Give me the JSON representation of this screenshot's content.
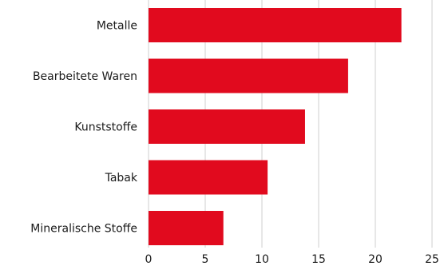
{
  "chart_data": {
    "type": "bar",
    "orientation": "horizontal",
    "categories": [
      "Metalle",
      "Bearbeitete Waren",
      "Kunststoffe",
      "Tabak",
      "Mineralische Stoffe"
    ],
    "values": [
      22.3,
      17.6,
      13.8,
      10.5,
      6.6
    ],
    "xlim": [
      0,
      25
    ],
    "x_ticks": [
      "0",
      "5",
      "10",
      "15",
      "20",
      "25"
    ],
    "title": "",
    "xlabel": "",
    "ylabel": "",
    "grid": "vertical",
    "bar_color": "#e10a1e"
  }
}
